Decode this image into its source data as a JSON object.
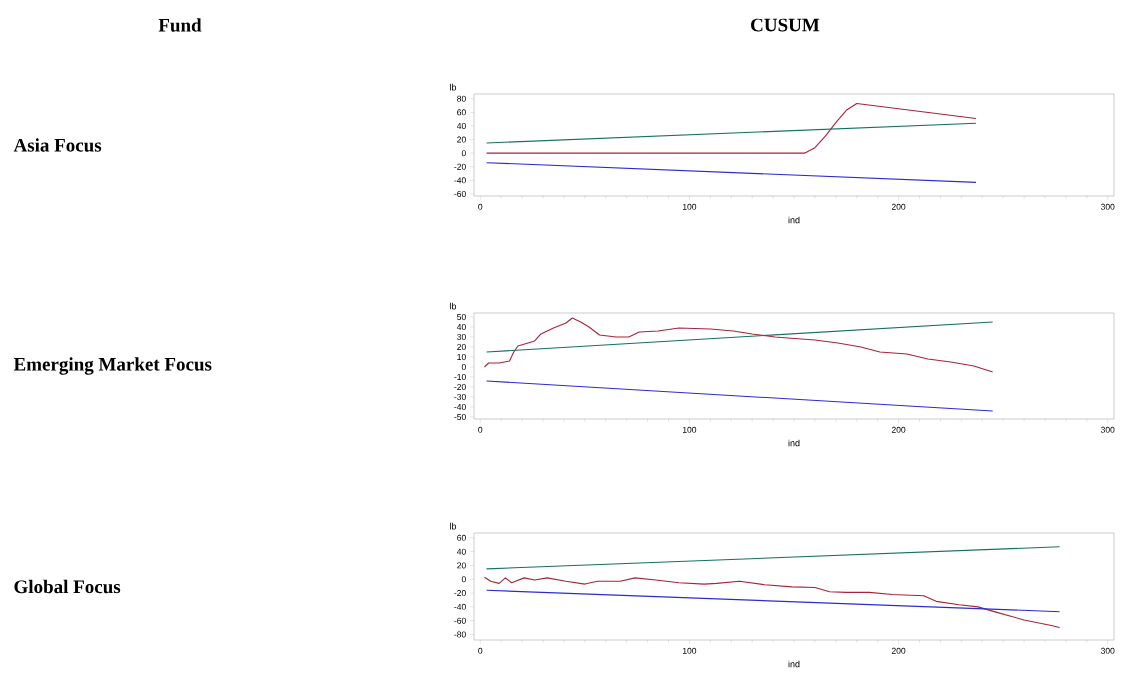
{
  "chart_data": [
    {
      "type": "line",
      "xlabel": "ind",
      "ylabel": "lb",
      "annotations": [
        "Fund",
        "CUSUM",
        "Asia Focus"
      ],
      "xlim": [
        -3,
        303
      ],
      "xticks": [
        0,
        100,
        200,
        300
      ],
      "ylim": [
        -63,
        87
      ],
      "yticks": [
        -60,
        -40,
        -20,
        0,
        20,
        40,
        60,
        80
      ],
      "series": [
        {
          "color": "#a8233a",
          "x": [
            3,
            155,
            160,
            165,
            170,
            175,
            180,
            237
          ],
          "values": [
            0,
            0,
            8,
            25,
            45,
            63,
            73,
            51
          ]
        },
        {
          "color": "#14705f",
          "x": [
            3,
            237
          ],
          "values": [
            15,
            44
          ]
        },
        {
          "color": "#2b2bd0",
          "x": [
            3,
            237
          ],
          "values": [
            -14,
            -43
          ]
        }
      ]
    },
    {
      "type": "line",
      "xlabel": "ind",
      "ylabel": "lb",
      "annotations": [
        "Emerging Market Focus"
      ],
      "xlim": [
        -3,
        303
      ],
      "xticks": [
        0,
        100,
        200,
        300
      ],
      "ylim": [
        -52,
        54
      ],
      "yticks": [
        -50,
        -40,
        -30,
        -20,
        -10,
        0,
        10,
        20,
        30,
        40,
        50
      ],
      "series": [
        {
          "color": "#a8233a",
          "x": [
            2,
            4,
            9,
            14,
            16,
            18,
            26,
            29,
            35,
            41,
            44,
            48,
            52,
            57,
            65,
            71,
            76,
            85,
            95,
            110,
            121,
            130,
            141,
            147,
            160,
            171,
            182,
            191,
            204,
            214,
            225,
            236,
            245
          ],
          "values": [
            0,
            4,
            4,
            6,
            15,
            21,
            26,
            33,
            39,
            44,
            49,
            45,
            40,
            32,
            30,
            30,
            35,
            36,
            39,
            38,
            36,
            33,
            30,
            29,
            27,
            24,
            20,
            15,
            13,
            8,
            5,
            1,
            -5
          ]
        },
        {
          "color": "#14705f",
          "x": [
            3,
            245
          ],
          "values": [
            15,
            45
          ]
        },
        {
          "color": "#2b2bd0",
          "x": [
            3,
            245
          ],
          "values": [
            -14,
            -44
          ]
        }
      ]
    },
    {
      "type": "line",
      "xlabel": "ind",
      "ylabel": "lb",
      "annotations": [
        "Global Focus"
      ],
      "xlim": [
        -3,
        303
      ],
      "xticks": [
        0,
        100,
        200,
        300
      ],
      "ylim": [
        -88,
        67
      ],
      "yticks": [
        -80,
        -60,
        -40,
        -20,
        0,
        20,
        40,
        60
      ],
      "series": [
        {
          "color": "#a8233a",
          "x": [
            2,
            5,
            9,
            12,
            15,
            21,
            26,
            32,
            41,
            50,
            56,
            67,
            74,
            84,
            95,
            107,
            113,
            124,
            136,
            149,
            160,
            167,
            175,
            186,
            197,
            212,
            218,
            229,
            238,
            247,
            260,
            273,
            277
          ],
          "values": [
            3,
            -3,
            -6,
            2,
            -5,
            2,
            -1,
            2,
            -3,
            -7,
            -3,
            -3,
            2,
            -1,
            -5,
            -7,
            -6,
            -3,
            -8,
            -11,
            -12,
            -18,
            -19,
            -19,
            -22,
            -24,
            -32,
            -37,
            -40,
            -48,
            -59,
            -67,
            -70
          ]
        },
        {
          "color": "#14705f",
          "x": [
            3,
            277
          ],
          "values": [
            15,
            47
          ]
        },
        {
          "color": "#2b2bd0",
          "x": [
            3,
            277
          ],
          "values": [
            -16,
            -47
          ]
        }
      ]
    }
  ]
}
